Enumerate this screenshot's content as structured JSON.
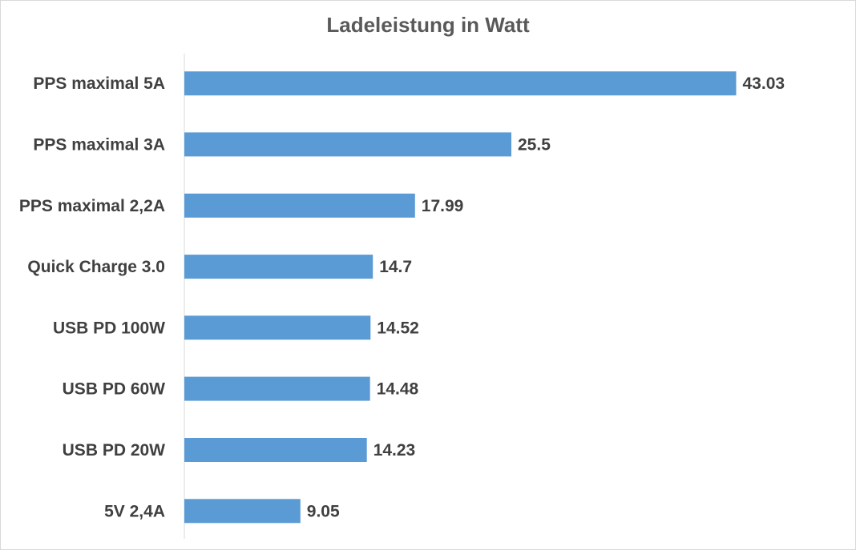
{
  "chart_data": {
    "type": "bar",
    "orientation": "horizontal",
    "title": "Ladeleistung in Watt",
    "categories": [
      "PPS maximal 5A",
      "PPS maximal 3A",
      "PPS maximal 2,2A",
      "Quick Charge 3.0",
      "USB PD 100W",
      "USB PD 60W",
      "USB PD 20W",
      "5V 2,4A"
    ],
    "values": [
      43.03,
      25.5,
      17.99,
      14.7,
      14.52,
      14.48,
      14.23,
      9.05
    ],
    "value_labels": [
      "43.03",
      "25.5",
      "17.99",
      "14.7",
      "14.52",
      "14.48",
      "14.23",
      "9.05"
    ],
    "xlim": [
      0,
      50
    ],
    "xlabel": "",
    "ylabel": "",
    "grid": false,
    "legend": "none",
    "bar_color": "#5b9bd5",
    "axis_color": "#d9d9d9"
  }
}
